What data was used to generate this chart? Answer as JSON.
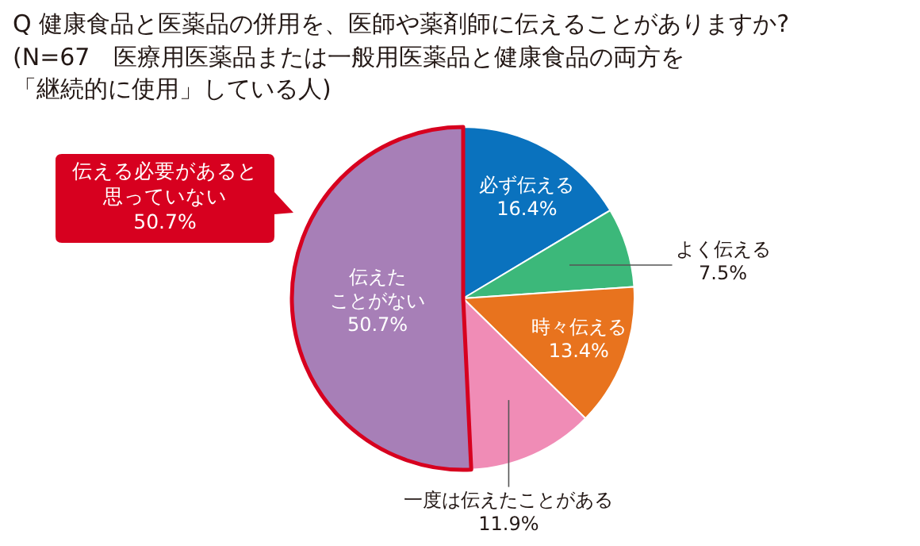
{
  "chart_data": {
    "type": "pie",
    "title": "Q 健康食品と医薬品の併用を、医師や薬剤師に伝えることがありますか?",
    "subtitle": "(N=67　医療用医薬品または一般用医薬品と健康食品の両方を「継続的に使用」している人)",
    "categories": [
      "必ず伝える",
      "よく伝える",
      "時々伝える",
      "一度は伝えたことがある",
      "伝えたことがない"
    ],
    "values": [
      16.4,
      7.5,
      13.4,
      11.9,
      50.7
    ],
    "colors": [
      "#0a72be",
      "#3cb87a",
      "#e8731e",
      "#f08cb6",
      "#a77fb7"
    ],
    "value_labels": [
      "16.4%",
      "7.5%",
      "13.4%",
      "11.9%",
      "50.7%"
    ],
    "annotations": [
      "伝える必要があると思っていない50.7%"
    ]
  }
}
